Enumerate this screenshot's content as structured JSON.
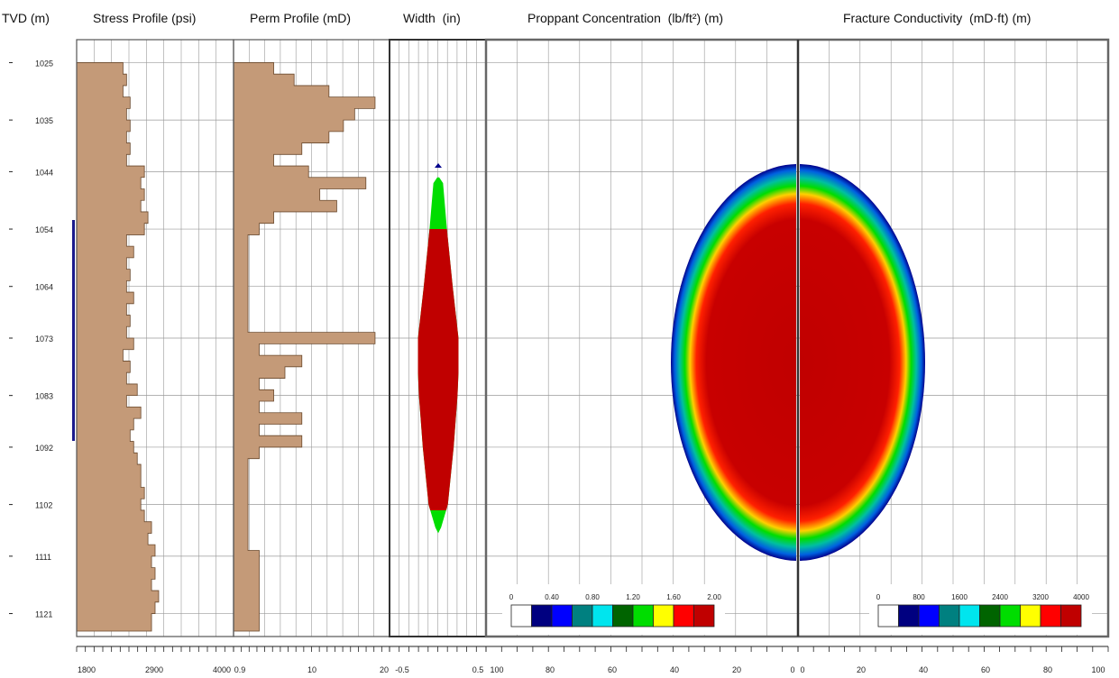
{
  "headers": {
    "tvd": "TVD (m)",
    "stress": "Stress Profile (psi)",
    "perm": "Perm Profile (mD)",
    "width": "Width  (in)",
    "proppant": "Proppant Concentration  (lb/ft²) (m)",
    "conductivity": "Fracture Conductivity  (mD·ft) (m)"
  },
  "depth_labels": [
    "1025",
    "1035",
    "1044",
    "1054",
    "1064",
    "1073",
    "1083",
    "1092",
    "1102",
    "1111",
    "1121"
  ],
  "bottom_axes": {
    "stress": [
      "1800",
      "2900",
      "4000"
    ],
    "perm": [
      "0.9",
      "10",
      "20"
    ],
    "width": [
      "-0.5",
      "0.5"
    ],
    "proppant": [
      "100",
      "80",
      "60",
      "40",
      "20",
      "0"
    ],
    "conductivity": [
      "0",
      "20",
      "40",
      "60",
      "80",
      "100"
    ]
  },
  "legends": {
    "proppant": {
      "labels": [
        "0",
        "0.40",
        "0.80",
        "1.20",
        "1.60",
        "2.00"
      ],
      "colors": [
        "#ffffff",
        "#000080",
        "#0000ff",
        "#008080",
        "#00e5ee",
        "#006400",
        "#00dd00",
        "#ffff00",
        "#ff0000",
        "#c00000"
      ]
    },
    "conductivity": {
      "labels": [
        "0",
        "800",
        "1600",
        "2400",
        "3200",
        "4000"
      ],
      "colors": [
        "#ffffff",
        "#000080",
        "#0000ff",
        "#008080",
        "#00e5ee",
        "#006400",
        "#00dd00",
        "#ffff00",
        "#ff0000",
        "#c00000"
      ]
    }
  },
  "colors": {
    "stress_fill": "#c49a78",
    "perm_fill": "#c49a78",
    "perforation": "#1a1a8c",
    "fracture_red": "#c00000",
    "grid": "#9a9a9a"
  },
  "chart_data": [
    {
      "type": "area",
      "name": "Stress Profile",
      "ylabel": "TVD (m)",
      "xlim": [
        1800,
        4000
      ],
      "ylim": [
        1121,
        1025
      ],
      "y": [
        1025,
        1027,
        1029,
        1031,
        1033,
        1035,
        1037,
        1039,
        1041,
        1043,
        1045,
        1047,
        1049,
        1051,
        1053,
        1055,
        1057,
        1059,
        1061,
        1063,
        1065,
        1067,
        1069,
        1071,
        1073,
        1075,
        1077,
        1079,
        1081,
        1083,
        1085,
        1087,
        1089,
        1091,
        1093,
        1095,
        1097,
        1099,
        1101,
        1103,
        1105,
        1107,
        1109,
        1111,
        1113,
        1115,
        1117,
        1119,
        1121
      ],
      "x": [
        2450,
        2500,
        2450,
        2550,
        2500,
        2550,
        2500,
        2550,
        2500,
        2750,
        2700,
        2750,
        2700,
        2800,
        2750,
        2500,
        2600,
        2500,
        2550,
        2500,
        2600,
        2500,
        2550,
        2500,
        2600,
        2450,
        2550,
        2500,
        2650,
        2500,
        2700,
        2600,
        2550,
        2600,
        2650,
        2700,
        2700,
        2750,
        2700,
        2750,
        2850,
        2800,
        2900,
        2850,
        2900,
        2850,
        2950,
        2900,
        2850
      ]
    },
    {
      "type": "area",
      "name": "Perm Profile",
      "xlim": [
        0.9,
        20
      ],
      "y": [
        1025,
        1027,
        1029,
        1031,
        1033,
        1035,
        1037,
        1039,
        1041,
        1043,
        1045,
        1047,
        1049,
        1051,
        1053,
        1055,
        1065,
        1072,
        1074,
        1076,
        1078,
        1080,
        1082,
        1084,
        1086,
        1088,
        1090,
        1092,
        1094,
        1100,
        1110,
        1121
      ],
      "x": [
        2.0,
        3.0,
        6.0,
        15.0,
        10.0,
        8.0,
        6.0,
        3.5,
        2.0,
        4.0,
        12.5,
        5.0,
        7.0,
        2.0,
        1.5,
        1.2,
        1.2,
        15.0,
        1.5,
        3.5,
        2.5,
        1.5,
        2.0,
        1.5,
        3.5,
        1.5,
        3.5,
        1.5,
        1.2,
        1.2,
        1.5,
        1.5
      ]
    },
    {
      "type": "area",
      "name": "Width",
      "xlim": [
        -0.5,
        0.5
      ],
      "y": [
        1045,
        1046,
        1054,
        1064,
        1073,
        1079,
        1083,
        1092,
        1102,
        1106,
        1107
      ],
      "x": [
        0.01,
        0.05,
        0.09,
        0.15,
        0.21,
        0.21,
        0.2,
        0.16,
        0.1,
        0.03,
        0.0
      ]
    },
    {
      "type": "heatmap",
      "name": "Proppant Concentration",
      "xlim": [
        100,
        0
      ],
      "top_depth": 1045,
      "bottom_depth": 1107,
      "max_half_length_m": 41,
      "max_value": 2.0
    },
    {
      "type": "heatmap",
      "name": "Fracture Conductivity",
      "xlim": [
        0,
        100
      ],
      "top_depth": 1045,
      "bottom_depth": 1107,
      "max_half_length_m": 41,
      "max_value": 4000
    }
  ]
}
